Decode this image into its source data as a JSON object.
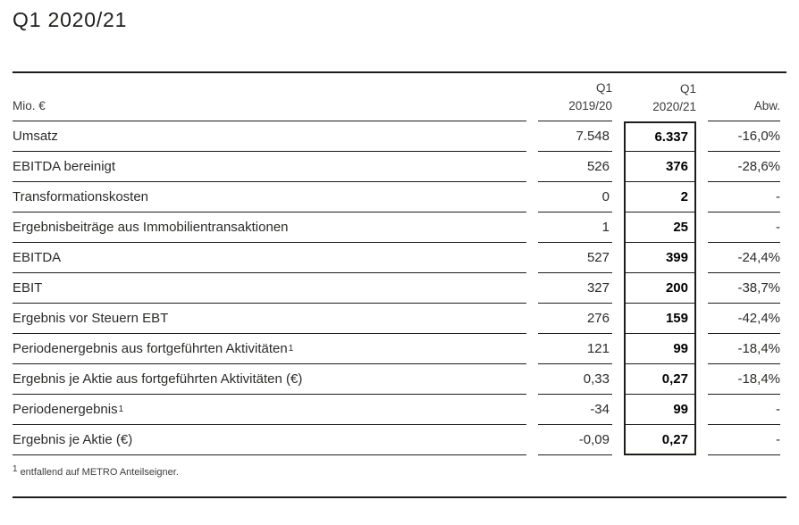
{
  "page": {
    "title": "Q1 2020/21",
    "footnote_marker": "1",
    "footnote_text": "entfallend auf METRO Anteilseigner."
  },
  "colors": {
    "text": "#1d1d1b",
    "secondary_text": "#3c3c3b",
    "bold_value": "#000000",
    "rule": "#1d1d1b",
    "background": "#ffffff"
  },
  "table": {
    "unit_label": "Mio. €",
    "columns": [
      {
        "line1": "Q1",
        "line2": "2019/20"
      },
      {
        "line1": "Q1",
        "line2": "2020/21"
      },
      {
        "line1": "",
        "line2": "Abw."
      }
    ],
    "highlighted_column": "Q1 2020/21",
    "rows": [
      {
        "label": "Umsatz",
        "sup": "",
        "prev": "7.548",
        "curr": "6.337",
        "delta": "-16,0%"
      },
      {
        "label": "EBITDA bereinigt",
        "sup": "",
        "prev": "526",
        "curr": "376",
        "delta": "-28,6%"
      },
      {
        "label": "Transformationskosten",
        "sup": "",
        "prev": "0",
        "curr": "2",
        "delta": "-"
      },
      {
        "label": "Ergebnisbeiträge aus Immobilientransaktionen",
        "sup": "",
        "prev": "1",
        "curr": "25",
        "delta": "-"
      },
      {
        "label": "EBITDA",
        "sup": "",
        "prev": "527",
        "curr": "399",
        "delta": "-24,4%"
      },
      {
        "label": "EBIT",
        "sup": "",
        "prev": "327",
        "curr": "200",
        "delta": "-38,7%"
      },
      {
        "label": "Ergebnis vor Steuern EBT",
        "sup": "",
        "prev": "276",
        "curr": "159",
        "delta": "-42,4%"
      },
      {
        "label": "Periodenergebnis aus fortgeführten Aktivitäten",
        "sup": "1",
        "prev": "121",
        "curr": "99",
        "delta": "-18,4%"
      },
      {
        "label": "Ergebnis je Aktie aus fortgeführten Aktivitäten (€)",
        "sup": "",
        "prev": "0,33",
        "curr": "0,27",
        "delta": "-18,4%"
      },
      {
        "label": "Periodenergebnis",
        "sup": "1",
        "prev": "-34",
        "curr": "99",
        "delta": "-"
      },
      {
        "label": "Ergebnis je Aktie (€)",
        "sup": "",
        "prev": "-0,09",
        "curr": "0,27",
        "delta": "-"
      }
    ]
  }
}
